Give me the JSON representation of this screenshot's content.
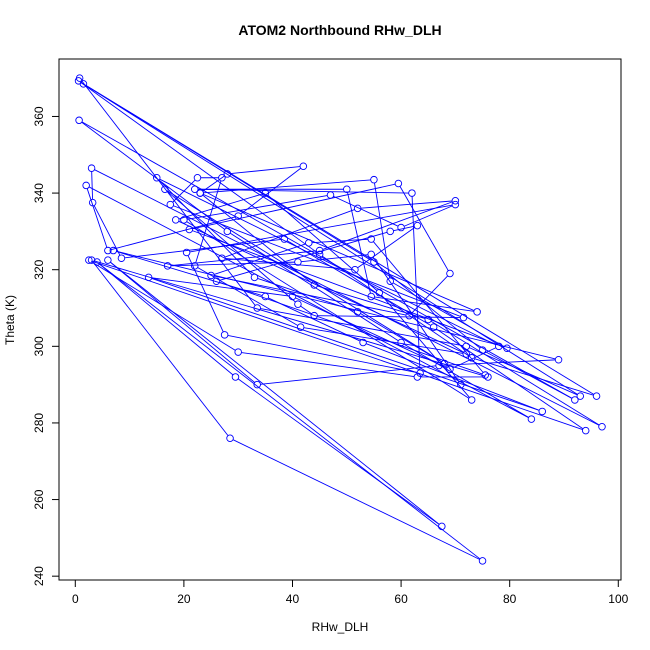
{
  "chart_data": {
    "type": "line",
    "title": "ATOM2 Northbound RHw_DLH",
    "xlabel": "RHw_DLH",
    "ylabel": "Theta (K)",
    "xlim": [
      -3,
      100.5
    ],
    "ylim": [
      239,
      375
    ],
    "x_ticks": [
      0,
      20,
      40,
      60,
      80,
      100
    ],
    "x_tick_labels": [
      "0",
      "20",
      "40",
      "60",
      "80",
      "100"
    ],
    "y_ticks": [
      240,
      260,
      280,
      300,
      320,
      340,
      360
    ],
    "y_tick_labels": [
      "240",
      "260",
      "280",
      "300",
      "320",
      "340",
      "360"
    ],
    "grid": false,
    "series_color": "#0000ff",
    "series": [
      {
        "points": [
          [
            0.8,
            370
          ],
          [
            33.5,
            310
          ],
          [
            72,
            300
          ],
          [
            93,
            287
          ],
          [
            0.6,
            369.3
          ],
          [
            45,
            324
          ],
          [
            73,
            297
          ],
          [
            96,
            287
          ],
          [
            1.5,
            368.5
          ],
          [
            55,
            322
          ],
          [
            75,
            299
          ],
          [
            92,
            286
          ],
          [
            0.7,
            359
          ],
          [
            28,
            330
          ],
          [
            60,
            301
          ],
          [
            84,
            281
          ],
          [
            2,
            342
          ],
          [
            6,
            325
          ],
          [
            30,
            334
          ],
          [
            42,
            347
          ],
          [
            28,
            345
          ],
          [
            23,
            340
          ],
          [
            44,
            316
          ],
          [
            65,
            307
          ],
          [
            97,
            279
          ],
          [
            3,
            346.5
          ],
          [
            3.2,
            337.5
          ],
          [
            8.5,
            323
          ],
          [
            38.5,
            328
          ],
          [
            66,
            305
          ],
          [
            94,
            278
          ],
          [
            2.5,
            322.5
          ],
          [
            30,
            298.5
          ],
          [
            63,
            292
          ],
          [
            76,
            292
          ],
          [
            3,
            322.5
          ],
          [
            28.5,
            276
          ],
          [
            75,
            244
          ],
          [
            4,
            322
          ],
          [
            29.5,
            292
          ],
          [
            67.5,
            253
          ],
          [
            6,
            322.5
          ],
          [
            33.5,
            290
          ],
          [
            67,
            295
          ],
          [
            89,
            296.5
          ],
          [
            7,
            325
          ],
          [
            35,
            313
          ],
          [
            53,
            301
          ],
          [
            86,
            283
          ],
          [
            13.5,
            318
          ],
          [
            40,
            313
          ],
          [
            69,
            294
          ],
          [
            78,
            300
          ],
          [
            15,
            344
          ],
          [
            33,
            318
          ],
          [
            52,
            309
          ],
          [
            68,
            295.5
          ],
          [
            16.5,
            341
          ],
          [
            41,
            311
          ],
          [
            44,
            308
          ],
          [
            71.5,
            307.5
          ],
          [
            17.5,
            337
          ],
          [
            22.5,
            344
          ],
          [
            27,
            344
          ],
          [
            22,
            321
          ],
          [
            41.5,
            305
          ],
          [
            72,
            298
          ],
          [
            18.5,
            333
          ],
          [
            35,
            340
          ],
          [
            56,
            314
          ],
          [
            73,
            286
          ],
          [
            20,
            333
          ],
          [
            47,
            339.5
          ],
          [
            60,
            331
          ],
          [
            70,
            337
          ],
          [
            20.5,
            324.5
          ],
          [
            27.5,
            303
          ],
          [
            63.5,
            293
          ],
          [
            62,
            340
          ],
          [
            22,
            341
          ],
          [
            50,
            341
          ],
          [
            54.5,
            313
          ],
          [
            74,
            309
          ],
          [
            23,
            340
          ],
          [
            55,
            343.5
          ],
          [
            58,
            317
          ],
          [
            79.5,
            299.5
          ],
          [
            21,
            330.5
          ],
          [
            59.5,
            342.5
          ],
          [
            69,
            319
          ],
          [
            61.5,
            308
          ],
          [
            25,
            318.5
          ],
          [
            43,
            327
          ],
          [
            54.5,
            328
          ],
          [
            75.5,
            292.5
          ],
          [
            26,
            317
          ],
          [
            58,
            330
          ],
          [
            63,
            331.5
          ],
          [
            51.5,
            320
          ],
          [
            27,
            323
          ],
          [
            52,
            336
          ],
          [
            70,
            338
          ],
          [
            45,
            325
          ],
          [
            17,
            321
          ],
          [
            41,
            322
          ],
          [
            54.5,
            324
          ],
          [
            71,
            290
          ]
        ]
      }
    ]
  }
}
